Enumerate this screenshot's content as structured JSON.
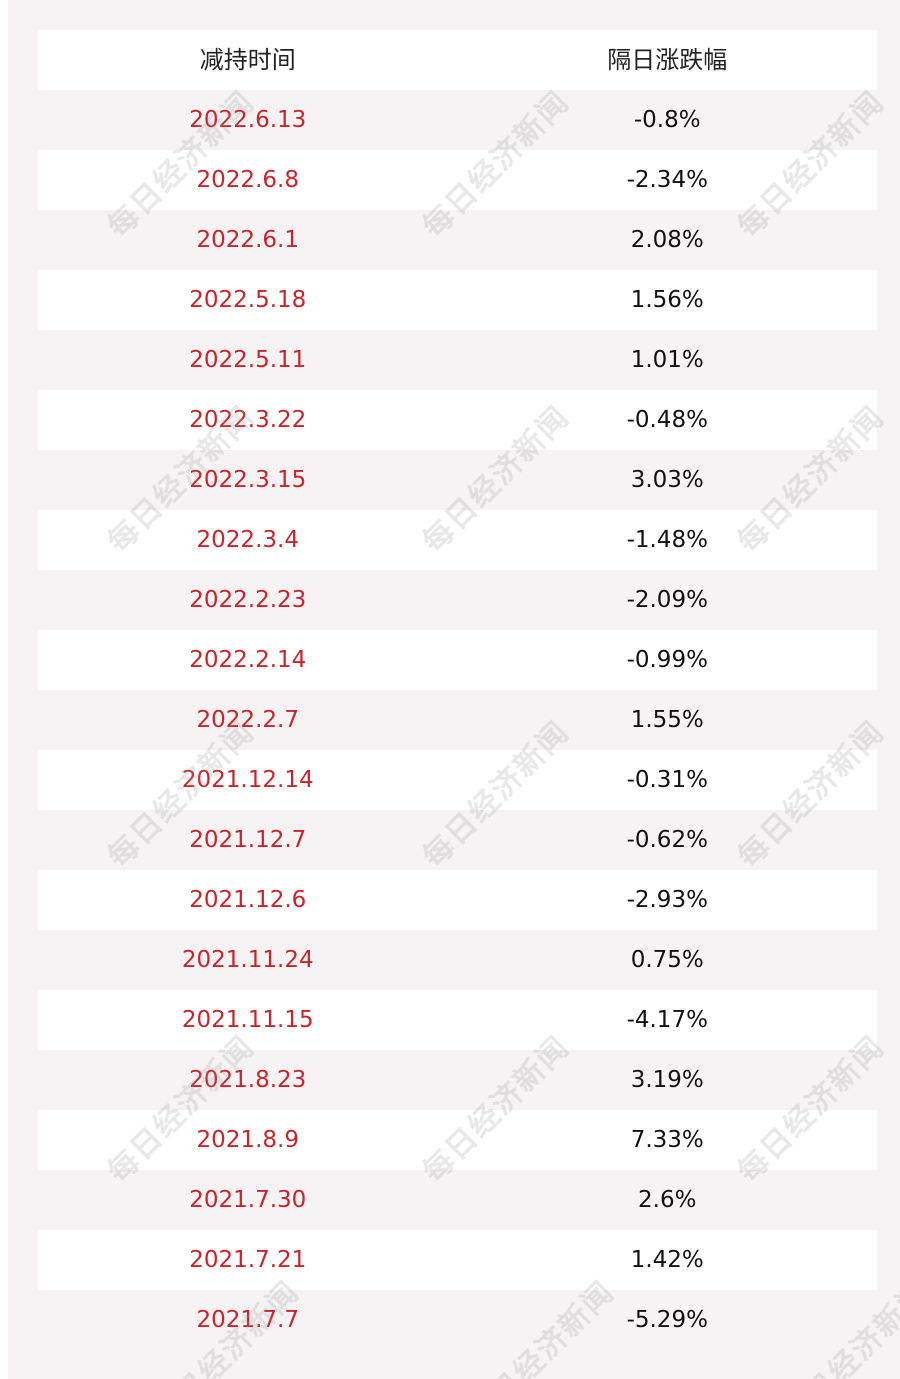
{
  "table": {
    "headers": {
      "time": "减持时间",
      "change": "隔日涨跌幅"
    },
    "rows": [
      {
        "date": "2022.6.13",
        "change": "-0.8%"
      },
      {
        "date": "2022.6.8",
        "change": "-2.34%"
      },
      {
        "date": "2022.6.1",
        "change": "2.08%"
      },
      {
        "date": "2022.5.18",
        "change": "1.56%"
      },
      {
        "date": "2022.5.11",
        "change": "1.01%"
      },
      {
        "date": "2022.3.22",
        "change": "-0.48%"
      },
      {
        "date": "2022.3.15",
        "change": "3.03%"
      },
      {
        "date": "2022.3.4",
        "change": "-1.48%"
      },
      {
        "date": "2022.2.23",
        "change": "-2.09%"
      },
      {
        "date": "2022.2.14",
        "change": "-0.99%"
      },
      {
        "date": "2022.2.7",
        "change": "1.55%"
      },
      {
        "date": "2021.12.14",
        "change": "-0.31%"
      },
      {
        "date": "2021.12.7",
        "change": "-0.62%"
      },
      {
        "date": "2021.12.6",
        "change": "-2.93%"
      },
      {
        "date": "2021.11.24",
        "change": "0.75%"
      },
      {
        "date": "2021.11.15",
        "change": "-4.17%"
      },
      {
        "date": "2021.8.23",
        "change": "3.19%"
      },
      {
        "date": "2021.8.9",
        "change": "7.33%"
      },
      {
        "date": "2021.7.30",
        "change": "2.6%"
      },
      {
        "date": "2021.7.21",
        "change": "1.42%"
      },
      {
        "date": "2021.7.7",
        "change": "-5.29%"
      }
    ]
  },
  "watermark": {
    "text": "每日经济新闻"
  },
  "colors": {
    "date_text": "#c9242d",
    "change_text": "#111111",
    "header_text": "#222222",
    "row_white": "#ffffff",
    "row_pink": "#f7f3f4"
  }
}
